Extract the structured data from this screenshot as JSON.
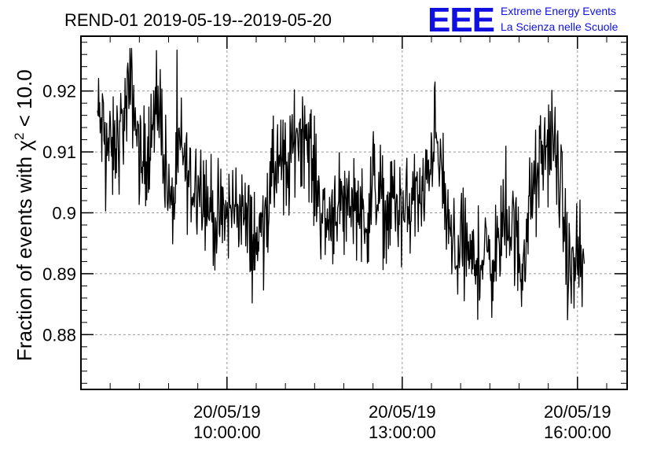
{
  "header": {
    "title": "REND-01 2019-05-19--2019-05-20",
    "logo_text": "EEE",
    "logo_line1": "Extreme Energy Events",
    "logo_line2": "La Scienza nelle Scuole",
    "logo_color": "#1010e0"
  },
  "chart_data": {
    "type": "line",
    "title": "REND-01 2019-05-19--2019-05-20",
    "xlabel": "",
    "ylabel_main": "Fraction of events with χ",
    "ylabel_sup": "2",
    "ylabel_tail": " < 10.0",
    "ylim": [
      0.871,
      0.929
    ],
    "xlim_hours": [
      7.5,
      16.85
    ],
    "grid": true,
    "line_color": "#000000",
    "y_ticks": [
      {
        "value": 0.88,
        "label": "0.88"
      },
      {
        "value": 0.89,
        "label": "0.89"
      },
      {
        "value": 0.9,
        "label": "0.9"
      },
      {
        "value": 0.91,
        "label": "0.91"
      },
      {
        "value": 0.92,
        "label": "0.92"
      }
    ],
    "x_ticks": [
      {
        "hour": 10,
        "date": "20/05/19",
        "time": "10:00:00"
      },
      {
        "hour": 13,
        "date": "20/05/19",
        "time": "13:00:00"
      },
      {
        "hour": 16,
        "date": "20/05/19",
        "time": "16:00:00"
      }
    ],
    "series": [
      {
        "x_time": [
          "07:47",
          "08:02",
          "08:12",
          "08:22",
          "08:32",
          "08:42",
          "08:52",
          "09:02",
          "09:12",
          "09:22",
          "09:32",
          "09:42",
          "09:52",
          "10:02",
          "10:12",
          "10:22",
          "10:32",
          "10:42",
          "10:52",
          "11:02",
          "11:12",
          "11:22",
          "11:32",
          "11:42",
          "11:52",
          "12:02",
          "12:12",
          "12:22",
          "12:32",
          "12:42",
          "12:52",
          "13:02",
          "13:12",
          "13:22",
          "13:32",
          "13:42",
          "13:52",
          "14:02",
          "14:12",
          "14:22",
          "14:32",
          "14:42",
          "14:52",
          "15:02",
          "15:12",
          "15:22",
          "15:32",
          "15:42",
          "15:52",
          "16:02",
          "16:07"
        ],
        "values": [
          0.916,
          0.909,
          0.914,
          0.921,
          0.907,
          0.913,
          0.917,
          0.899,
          0.911,
          0.905,
          0.906,
          0.901,
          0.898,
          0.9,
          0.902,
          0.897,
          0.895,
          0.902,
          0.909,
          0.906,
          0.914,
          0.913,
          0.904,
          0.898,
          0.902,
          0.901,
          0.903,
          0.898,
          0.906,
          0.9,
          0.902,
          0.899,
          0.903,
          0.901,
          0.914,
          0.904,
          0.893,
          0.896,
          0.891,
          0.893,
          0.892,
          0.896,
          0.899,
          0.891,
          0.902,
          0.907,
          0.913,
          0.905,
          0.889,
          0.892,
          0.888
        ]
      }
    ]
  }
}
